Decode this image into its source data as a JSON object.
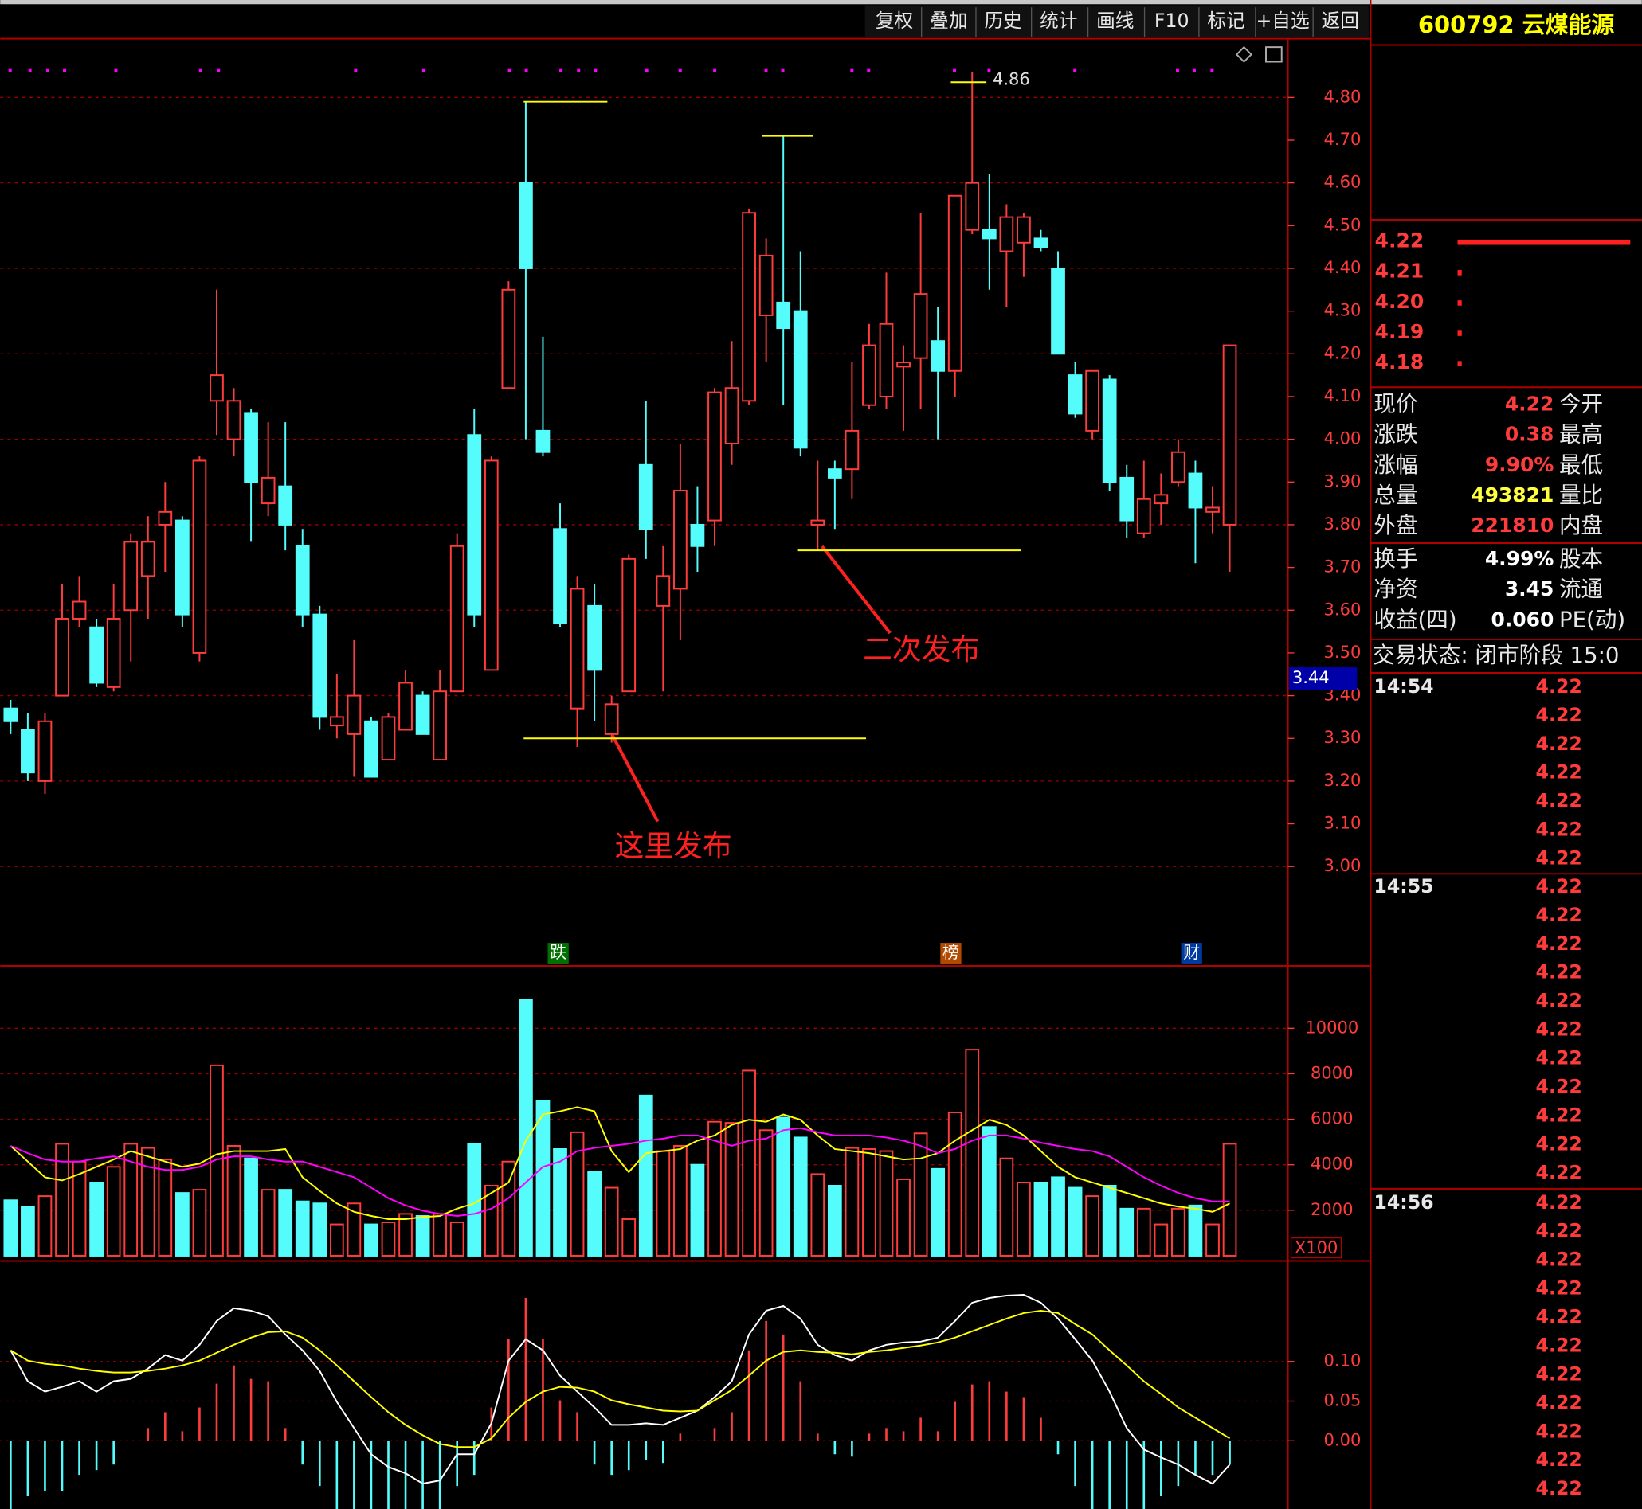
{
  "toolbar": {
    "buttons": [
      "复权",
      "叠加",
      "历史",
      "统计",
      "画线",
      "F10",
      "标记",
      "+自选",
      "返回"
    ]
  },
  "chart_data": [
    {
      "type": "candlestick",
      "up_color": "#ff3c3c",
      "down_color": "#54fcfc",
      "open": [
        3.37,
        3.32,
        3.2,
        3.4,
        3.58,
        3.56,
        3.42,
        3.6,
        3.68,
        3.8,
        3.81,
        3.5,
        4.09,
        4.0,
        4.06,
        3.85,
        3.89,
        3.75,
        3.59,
        3.33,
        3.31,
        3.34,
        3.25,
        3.32,
        3.4,
        3.25,
        3.41,
        4.01,
        3.46,
        4.12,
        4.6,
        4.02,
        3.79,
        3.37,
        3.61,
        3.31,
        3.41,
        3.94,
        3.61,
        3.65,
        3.8,
        3.81,
        3.99,
        4.09,
        4.29,
        4.32,
        4.3,
        3.8,
        3.93,
        3.93,
        4.08,
        4.1,
        4.17,
        4.19,
        4.23,
        4.16,
        4.49,
        4.49,
        4.44,
        4.46,
        4.47,
        4.4,
        4.15,
        4.02,
        4.14,
        3.91,
        3.78,
        3.85,
        3.9,
        3.92,
        3.83,
        3.8
      ],
      "high": [
        3.39,
        3.36,
        3.36,
        3.66,
        3.68,
        3.58,
        3.66,
        3.78,
        3.82,
        3.9,
        3.82,
        3.96,
        4.35,
        4.12,
        4.07,
        4.04,
        4.04,
        3.79,
        3.61,
        3.45,
        3.53,
        3.35,
        3.36,
        3.46,
        3.41,
        3.46,
        3.78,
        4.07,
        3.96,
        4.37,
        4.79,
        4.24,
        3.85,
        3.68,
        3.66,
        3.4,
        3.73,
        4.09,
        3.75,
        3.99,
        3.89,
        4.12,
        4.23,
        4.54,
        4.47,
        4.71,
        4.44,
        3.95,
        3.95,
        4.18,
        4.27,
        4.39,
        4.22,
        4.53,
        4.31,
        4.57,
        4.86,
        4.62,
        4.55,
        4.53,
        4.49,
        4.44,
        4.18,
        4.16,
        4.15,
        3.94,
        3.95,
        3.92,
        4.0,
        3.95,
        3.89,
        4.22
      ],
      "low": [
        3.31,
        3.2,
        3.17,
        3.4,
        3.56,
        3.42,
        3.41,
        3.48,
        3.58,
        3.69,
        3.56,
        3.48,
        4.01,
        3.96,
        3.76,
        3.82,
        3.74,
        3.56,
        3.32,
        3.3,
        3.21,
        3.21,
        3.25,
        3.32,
        3.31,
        3.25,
        3.41,
        3.56,
        3.46,
        4.12,
        4.0,
        3.96,
        3.56,
        3.28,
        3.34,
        3.29,
        3.41,
        3.72,
        3.41,
        3.53,
        3.69,
        3.75,
        3.94,
        4.08,
        4.18,
        4.08,
        3.96,
        3.74,
        3.79,
        3.86,
        4.07,
        4.07,
        4.02,
        4.07,
        4.0,
        4.1,
        4.48,
        4.35,
        4.31,
        4.38,
        4.44,
        4.2,
        4.05,
        4.0,
        3.88,
        3.77,
        3.77,
        3.8,
        3.89,
        3.71,
        3.78,
        3.69
      ],
      "close": [
        3.34,
        3.22,
        3.34,
        3.58,
        3.62,
        3.43,
        3.58,
        3.76,
        3.76,
        3.83,
        3.59,
        3.95,
        4.15,
        4.09,
        3.9,
        3.91,
        3.8,
        3.59,
        3.35,
        3.35,
        3.4,
        3.21,
        3.35,
        3.43,
        3.31,
        3.41,
        3.75,
        3.59,
        3.95,
        4.35,
        4.4,
        3.97,
        3.57,
        3.65,
        3.46,
        3.38,
        3.72,
        3.79,
        3.68,
        3.88,
        3.75,
        4.11,
        4.12,
        4.53,
        4.43,
        4.26,
        3.98,
        3.81,
        3.91,
        4.02,
        4.22,
        4.27,
        4.18,
        4.34,
        4.16,
        4.57,
        4.6,
        4.47,
        4.52,
        4.52,
        4.45,
        4.2,
        4.06,
        4.16,
        3.9,
        3.81,
        3.86,
        3.87,
        3.97,
        3.84,
        3.84,
        4.22
      ],
      "ylim": [
        2.77,
        4.93
      ],
      "yticks": [
        {
          "value": 3.0,
          "label": "3.00"
        },
        {
          "value": 3.1,
          "label": "3.10"
        },
        {
          "value": 3.2,
          "label": "3.20"
        },
        {
          "value": 3.3,
          "label": "3.30"
        },
        {
          "value": 3.4,
          "label": "3.40"
        },
        {
          "value": 3.5,
          "label": "3.50"
        },
        {
          "value": 3.6,
          "label": "3.60"
        },
        {
          "value": 3.7,
          "label": "3.70"
        },
        {
          "value": 3.8,
          "label": "3.80"
        },
        {
          "value": 3.9,
          "label": "3.90"
        },
        {
          "value": 4.0,
          "label": "4.00"
        },
        {
          "value": 4.1,
          "label": "4.10"
        },
        {
          "value": 4.2,
          "label": "4.20"
        },
        {
          "value": 4.3,
          "label": "4.30"
        },
        {
          "value": 4.4,
          "label": "4.40"
        },
        {
          "value": 4.5,
          "label": "4.50"
        },
        {
          "value": 4.6,
          "label": "4.60"
        },
        {
          "value": 4.7,
          "label": "4.70"
        },
        {
          "value": 4.8,
          "label": "4.80"
        }
      ],
      "grid": true,
      "levels": [
        4.79,
        4.71,
        3.3,
        3.74
      ],
      "high_label": {
        "value": 4.86,
        "label": "4.86"
      },
      "cursor_price": {
        "value": 3.44,
        "label": "3.44"
      },
      "annotations": [
        "这里发布",
        "二次发布"
      ],
      "events": [
        "跌",
        "榜",
        "财"
      ]
    },
    {
      "type": "bar",
      "up_color": "#ff3c3c",
      "down_color": "#54fcfc",
      "unit": "X100",
      "values": [
        2440,
        2160,
        2620,
        4920,
        4140,
        3220,
        3910,
        4920,
        4740,
        4230,
        2760,
        2900,
        8370,
        4830,
        4280,
        2900,
        2900,
        2390,
        2300,
        1380,
        2300,
        1380,
        1470,
        1840,
        1750,
        1840,
        1470,
        4920,
        3080,
        4140,
        11270,
        6810,
        4690,
        5430,
        3680,
        2990,
        1610,
        7040,
        4600,
        4830,
        4000,
        5890,
        5840,
        8140,
        5520,
        6070,
        5200,
        3590,
        3080,
        4740,
        4690,
        4600,
        3360,
        5380,
        3820,
        6300,
        9060,
        5660,
        4280,
        3220,
        3220,
        3450,
        2990,
        2620,
        3080,
        2070,
        2070,
        1380,
        2070,
        2210,
        1380,
        4920
      ],
      "series": [
        {
          "color": "#ffff00",
          "values": [
            4830,
            4140,
            3450,
            3310,
            3590,
            3910,
            4230,
            4600,
            4370,
            4140,
            3910,
            4050,
            4460,
            4600,
            4600,
            4600,
            4690,
            3450,
            2850,
            2300,
            1930,
            1750,
            1610,
            1610,
            1700,
            1750,
            2070,
            2300,
            2760,
            3220,
            5060,
            6210,
            6350,
            6530,
            6350,
            4600,
            3680,
            4510,
            4600,
            4690,
            5060,
            5290,
            5750,
            5980,
            5890,
            6210,
            5980,
            5290,
            4690,
            4600,
            4510,
            4370,
            4230,
            4280,
            4510,
            5060,
            5520,
            5980,
            5750,
            5290,
            4600,
            3910,
            3450,
            3220,
            2990,
            2760,
            2530,
            2300,
            2160,
            2070,
            1930,
            2300
          ]
        },
        {
          "color": "#ff00ff",
          "values": [
            4830,
            4510,
            4230,
            4140,
            4140,
            4280,
            4370,
            4140,
            3910,
            3770,
            3770,
            3910,
            4230,
            4370,
            4370,
            4230,
            4140,
            4140,
            3910,
            3680,
            3450,
            2990,
            2530,
            2210,
            1980,
            1840,
            1750,
            1840,
            2070,
            2530,
            3220,
            3910,
            4140,
            4600,
            4740,
            4830,
            4920,
            5060,
            5150,
            5290,
            5290,
            5060,
            4830,
            5060,
            5150,
            5520,
            5610,
            5430,
            5290,
            5290,
            5290,
            5200,
            5060,
            4830,
            4510,
            4690,
            5060,
            5290,
            5290,
            5150,
            4970,
            4830,
            4690,
            4600,
            4370,
            3910,
            3450,
            3080,
            2760,
            2530,
            2390,
            2390
          ]
        }
      ],
      "ylim": [
        0,
        12650
      ],
      "yticks": [
        2000,
        4000,
        6000,
        8000,
        10000
      ],
      "grid": true
    },
    {
      "type": "macd",
      "up_color": "#ff3c3c",
      "down_color": "#54fcfc",
      "histogram": [
        -0.09,
        -0.07,
        -0.063,
        -0.063,
        -0.043,
        -0.037,
        -0.03,
        0,
        0.016,
        0.036,
        0.012,
        0.042,
        0.072,
        0.095,
        0.078,
        0.075,
        0.016,
        -0.03,
        -0.057,
        -0.09,
        -0.09,
        -0.09,
        -0.09,
        -0.09,
        -0.09,
        -0.09,
        -0.057,
        -0.043,
        0.042,
        0.128,
        0.18,
        0.128,
        0.051,
        0.036,
        -0.03,
        -0.043,
        -0.037,
        -0.024,
        -0.028,
        0.009,
        0,
        0.016,
        0.036,
        0.114,
        0.151,
        0.134,
        0.075,
        0.009,
        -0.017,
        -0.02,
        0.009,
        0.016,
        0.012,
        0.029,
        0.012,
        0.049,
        0.071,
        0.075,
        0.062,
        0.055,
        0.029,
        -0.017,
        -0.057,
        -0.09,
        -0.09,
        -0.09,
        -0.09,
        -0.07,
        -0.057,
        -0.043,
        -0.043,
        -0.03
      ],
      "series": [
        {
          "color": "#ffffff",
          "values": [
            0.114,
            0.075,
            0.062,
            0.068,
            0.075,
            0.062,
            0.075,
            0.078,
            0.091,
            0.108,
            0.101,
            0.121,
            0.151,
            0.167,
            0.164,
            0.157,
            0.134,
            0.114,
            0.088,
            0.049,
            0.016,
            -0.017,
            -0.033,
            -0.041,
            -0.054,
            -0.05,
            -0.017,
            -0.017,
            0.022,
            0.101,
            0.128,
            0.114,
            0.082,
            0.062,
            0.042,
            0.02,
            0.02,
            0.022,
            0.02,
            0.029,
            0.038,
            0.055,
            0.075,
            0.134,
            0.164,
            0.17,
            0.154,
            0.121,
            0.108,
            0.101,
            0.114,
            0.121,
            0.124,
            0.125,
            0.13,
            0.151,
            0.174,
            0.18,
            0.183,
            0.184,
            0.174,
            0.154,
            0.128,
            0.101,
            0.062,
            0.016,
            -0.011,
            -0.021,
            -0.03,
            -0.043,
            -0.054,
            -0.03
          ]
        },
        {
          "color": "#ffff00",
          "values": [
            0.114,
            0.101,
            0.097,
            0.095,
            0.091,
            0.088,
            0.086,
            0.086,
            0.088,
            0.091,
            0.095,
            0.101,
            0.111,
            0.121,
            0.13,
            0.137,
            0.138,
            0.13,
            0.114,
            0.095,
            0.075,
            0.055,
            0.036,
            0.02,
            0.007,
            -0.004,
            -0.008,
            -0.008,
            0.003,
            0.029,
            0.049,
            0.062,
            0.068,
            0.067,
            0.062,
            0.051,
            0.046,
            0.042,
            0.038,
            0.037,
            0.038,
            0.051,
            0.064,
            0.082,
            0.101,
            0.112,
            0.114,
            0.112,
            0.111,
            0.109,
            0.112,
            0.114,
            0.117,
            0.12,
            0.124,
            0.13,
            0.138,
            0.146,
            0.154,
            0.161,
            0.164,
            0.161,
            0.147,
            0.134,
            0.114,
            0.095,
            0.075,
            0.059,
            0.042,
            0.029,
            0.016,
            0.003
          ]
        }
      ],
      "ylim": [
        -0.086,
        0.224
      ],
      "yticks": [
        {
          "value": 0,
          "label": "0.00"
        },
        {
          "value": 0.05,
          "label": "0.05"
        },
        {
          "value": 0.1,
          "label": "0.10"
        }
      ],
      "grid": true
    }
  ],
  "quote_panel": {
    "title": "600792 云煤能源",
    "book_prices": [
      "4.22",
      "4.21",
      "4.20",
      "4.19",
      "4.18"
    ],
    "stats": [
      [
        "现价",
        "4.22",
        "今开"
      ],
      [
        "涨跌",
        "0.38",
        "最高"
      ],
      [
        "涨幅",
        "9.90%",
        "最低"
      ],
      [
        "总量",
        "493821",
        "量比"
      ],
      [
        "外盘",
        "221810",
        "内盘"
      ],
      [
        "换手",
        "4.99%",
        "股本"
      ],
      [
        "净资",
        "3.45",
        "流通"
      ],
      [
        "收益(四)",
        "0.060",
        "PE(动)"
      ]
    ],
    "status": "交易状态: 闭市阶段 15:0",
    "ticks": [
      {
        "time": "14:54",
        "prices": [
          "4.22",
          "4.22",
          "4.22",
          "4.22",
          "4.22",
          "4.22",
          "4.22"
        ]
      },
      {
        "time": "14:55",
        "prices": [
          "4.22",
          "4.22",
          "4.22",
          "4.22",
          "4.22",
          "4.22",
          "4.22",
          "4.22",
          "4.22",
          "4.22",
          "4.22"
        ]
      },
      {
        "time": "14:56",
        "prices": [
          "4.22",
          "4.22",
          "4.22",
          "4.22",
          "4.22",
          "4.22",
          "4.22",
          "4.22",
          "4.22",
          "4.22",
          "4.22"
        ]
      }
    ]
  }
}
